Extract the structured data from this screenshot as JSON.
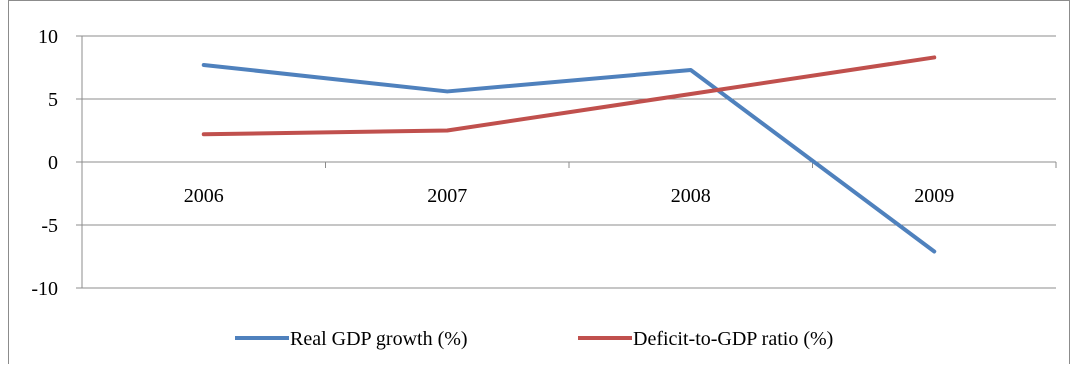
{
  "chart_data": {
    "type": "line",
    "categories": [
      "2006",
      "2007",
      "2008",
      "2009"
    ],
    "series": [
      {
        "name": "Real GDP growth (%)",
        "values": [
          7.7,
          5.6,
          7.3,
          -7.1
        ],
        "color": "#4f81bd"
      },
      {
        "name": "Deficit-to-GDP ratio (%)",
        "values": [
          2.2,
          2.5,
          5.4,
          8.3
        ],
        "color": "#c0504d"
      }
    ],
    "yticks": [
      "10",
      "5",
      "0",
      "-5",
      "-10"
    ],
    "ylim": [
      -10,
      10
    ],
    "grid": true,
    "legend_position": "bottom",
    "title": "",
    "xlabel": "",
    "ylabel": ""
  }
}
